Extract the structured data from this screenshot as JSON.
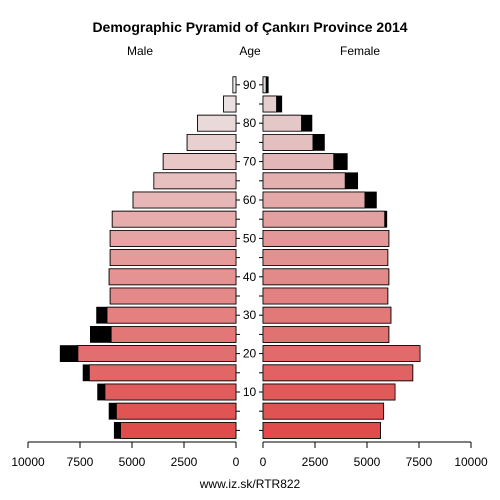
{
  "chart_data": {
    "type": "bar",
    "title": "Demographic Pyramid of Çankırı Province 2014",
    "male_label": "Male",
    "female_label": "Female",
    "age_label": "Age",
    "source": "www.iz.sk/RTR822",
    "age_groups": [
      "0-4",
      "5-9",
      "10-14",
      "15-19",
      "20-24",
      "25-29",
      "30-34",
      "35-39",
      "40-44",
      "45-49",
      "50-54",
      "55-59",
      "60-64",
      "65-69",
      "70-74",
      "75-79",
      "80-84",
      "85-89",
      "90+"
    ],
    "age_ticks": [
      "10",
      "20",
      "30",
      "40",
      "50",
      "60",
      "70",
      "80",
      "90"
    ],
    "male_xticks": [
      "10000",
      "7500",
      "5000",
      "2500",
      "0"
    ],
    "female_xticks": [
      "0",
      "2500",
      "5000",
      "7500",
      "10000"
    ],
    "xlim": [
      0,
      10000
    ],
    "series": [
      {
        "name": "Male",
        "values": [
          5850,
          6100,
          6650,
          7350,
          8450,
          7000,
          6700,
          6050,
          6100,
          6050,
          6050,
          5950,
          4950,
          3950,
          3500,
          2350,
          1850,
          600,
          150
        ]
      },
      {
        "name": "Female",
        "values": [
          5650,
          5800,
          6350,
          7200,
          7550,
          6050,
          6150,
          6000,
          6050,
          6000,
          6050,
          5950,
          5450,
          4550,
          4050,
          2950,
          2350,
          900,
          250
        ]
      },
      {
        "name": "Male native",
        "values": [
          5550,
          5750,
          6300,
          7050,
          7600,
          6000,
          6200,
          6050,
          6100,
          6050,
          6050,
          5950,
          4950,
          3950,
          3500,
          2350,
          1850,
          600,
          150
        ]
      },
      {
        "name": "Female native",
        "values": [
          5650,
          5800,
          6350,
          7200,
          7550,
          6050,
          6150,
          6000,
          6050,
          6000,
          6050,
          5850,
          4900,
          3950,
          3400,
          2400,
          1850,
          650,
          150
        ]
      }
    ],
    "colors": {
      "male_start": "#e04b4b",
      "male_end": "#ebebeb",
      "female_start": "#e04b4b",
      "female_end": "#e4d6d6",
      "excess": "#000000",
      "outline": "#000000"
    }
  }
}
